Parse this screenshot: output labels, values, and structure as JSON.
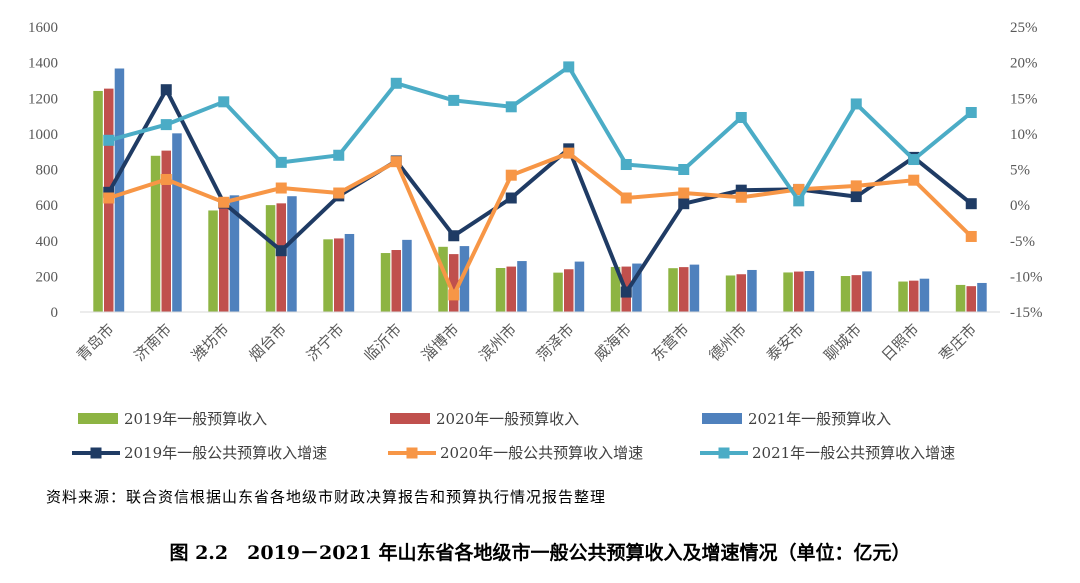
{
  "chart_data": {
    "type": "bar+line",
    "categories": [
      "青岛市",
      "济南市",
      "潍坊市",
      "烟台市",
      "济宁市",
      "临沂市",
      "淄博市",
      "滨州市",
      "菏泽市",
      "威海市",
      "东营市",
      "德州市",
      "泰安市",
      "聊城市",
      "日照市",
      "枣庄市"
    ],
    "bar_series": [
      {
        "name": "2019年一般预算收入",
        "color": "#8DB443",
        "values": [
          1241,
          877,
          570,
          600,
          408,
          331,
          366,
          247,
          221,
          253,
          246,
          205,
          222,
          202,
          171,
          152
        ]
      },
      {
        "name": "2020年一般预算收入",
        "color": "#C0504D",
        "values": [
          1254,
          906,
          590,
          610,
          413,
          348,
          325,
          255,
          240,
          255,
          252,
          212,
          227,
          207,
          176,
          145
        ]
      },
      {
        "name": "2021年一般预算收入",
        "color": "#4F81BD",
        "values": [
          1367,
          1003,
          655,
          650,
          438,
          405,
          370,
          286,
          283,
          272,
          266,
          236,
          230,
          228,
          187,
          163
        ]
      }
    ],
    "line_series": [
      {
        "name": "2019年一般公共预算收入增速",
        "color": "#1F3B64",
        "marker": "square",
        "values": [
          1.8,
          16.2,
          0.3,
          -6.4,
          1.3,
          6.2,
          -4.3,
          1.0,
          7.9,
          -12.2,
          0.2,
          2.1,
          2.2,
          1.2,
          6.7,
          0.2
        ]
      },
      {
        "name": "2020年一般公共预算收入增速",
        "color": "#F79646",
        "marker": "square",
        "values": [
          1.0,
          3.6,
          0.4,
          2.4,
          1.7,
          6.1,
          -12.6,
          4.2,
          7.3,
          1.0,
          1.7,
          1.1,
          2.2,
          2.7,
          3.5,
          -4.4
        ]
      },
      {
        "name": "2021年一般公共预算收入增速",
        "color": "#4BACC6",
        "marker": "square",
        "values": [
          9.1,
          11.3,
          14.5,
          6.0,
          7.0,
          17.1,
          14.7,
          13.8,
          19.4,
          5.7,
          5.0,
          12.3,
          0.6,
          14.2,
          6.4,
          13.0
        ]
      }
    ],
    "y_left": {
      "min": 0,
      "max": 1600,
      "ticks": [
        0,
        200,
        400,
        600,
        800,
        1000,
        1200,
        1400,
        1600
      ],
      "labels": [
        "0",
        "200",
        "400",
        "600",
        "800",
        "1000",
        "1200",
        "1400",
        "1600"
      ]
    },
    "y_right": {
      "min": -15,
      "max": 25,
      "ticks": [
        -15,
        -10,
        -5,
        0,
        5,
        10,
        15,
        20,
        25
      ],
      "labels": [
        "-15%",
        "-10%",
        "-5%",
        "0%",
        "5%",
        "10%",
        "15%",
        "20%",
        "25%"
      ]
    },
    "legend_position": "bottom",
    "grid": false
  },
  "source_text": "资料来源：联合资信根据山东省各地级市财政决算报告和预算执行情况报告整理",
  "caption_text": "图 2.2　2019－2021 年山东省各地级市一般公共预算收入及增速情况（单位：亿元）"
}
